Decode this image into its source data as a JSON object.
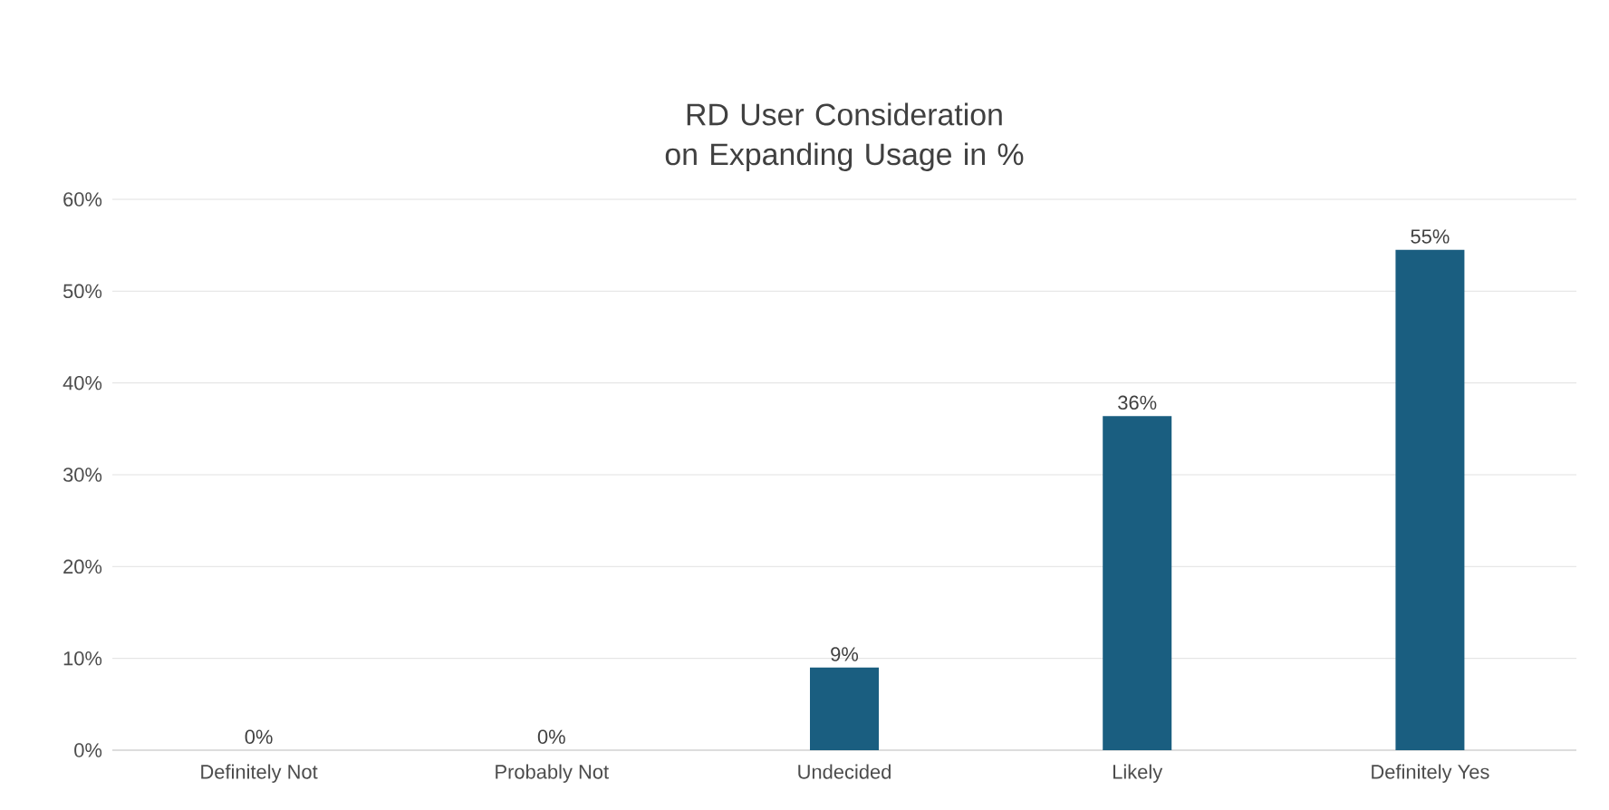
{
  "chart_data": {
    "type": "bar",
    "title": "RD User Consideration on Expanding Usage in %",
    "categories": [
      "Definitely Not",
      "Probably Not",
      "Undecided",
      "Likely",
      "Definitely Yes"
    ],
    "values": [
      0,
      0,
      9,
      36.4,
      54.5
    ],
    "value_labels": [
      "0%",
      "0%",
      "9%",
      "36%",
      "55%"
    ],
    "color": "#1a5e80",
    "ylim": [
      0,
      60
    ],
    "yticks": [
      {
        "value": 0,
        "label": "0%"
      },
      {
        "value": 10,
        "label": "10%"
      },
      {
        "value": 20,
        "label": "20%"
      },
      {
        "value": 30,
        "label": "30%"
      },
      {
        "value": 40,
        "label": "40%"
      },
      {
        "value": 50,
        "label": "50%"
      },
      {
        "value": 60,
        "label": "60%"
      }
    ],
    "grid": "y"
  }
}
